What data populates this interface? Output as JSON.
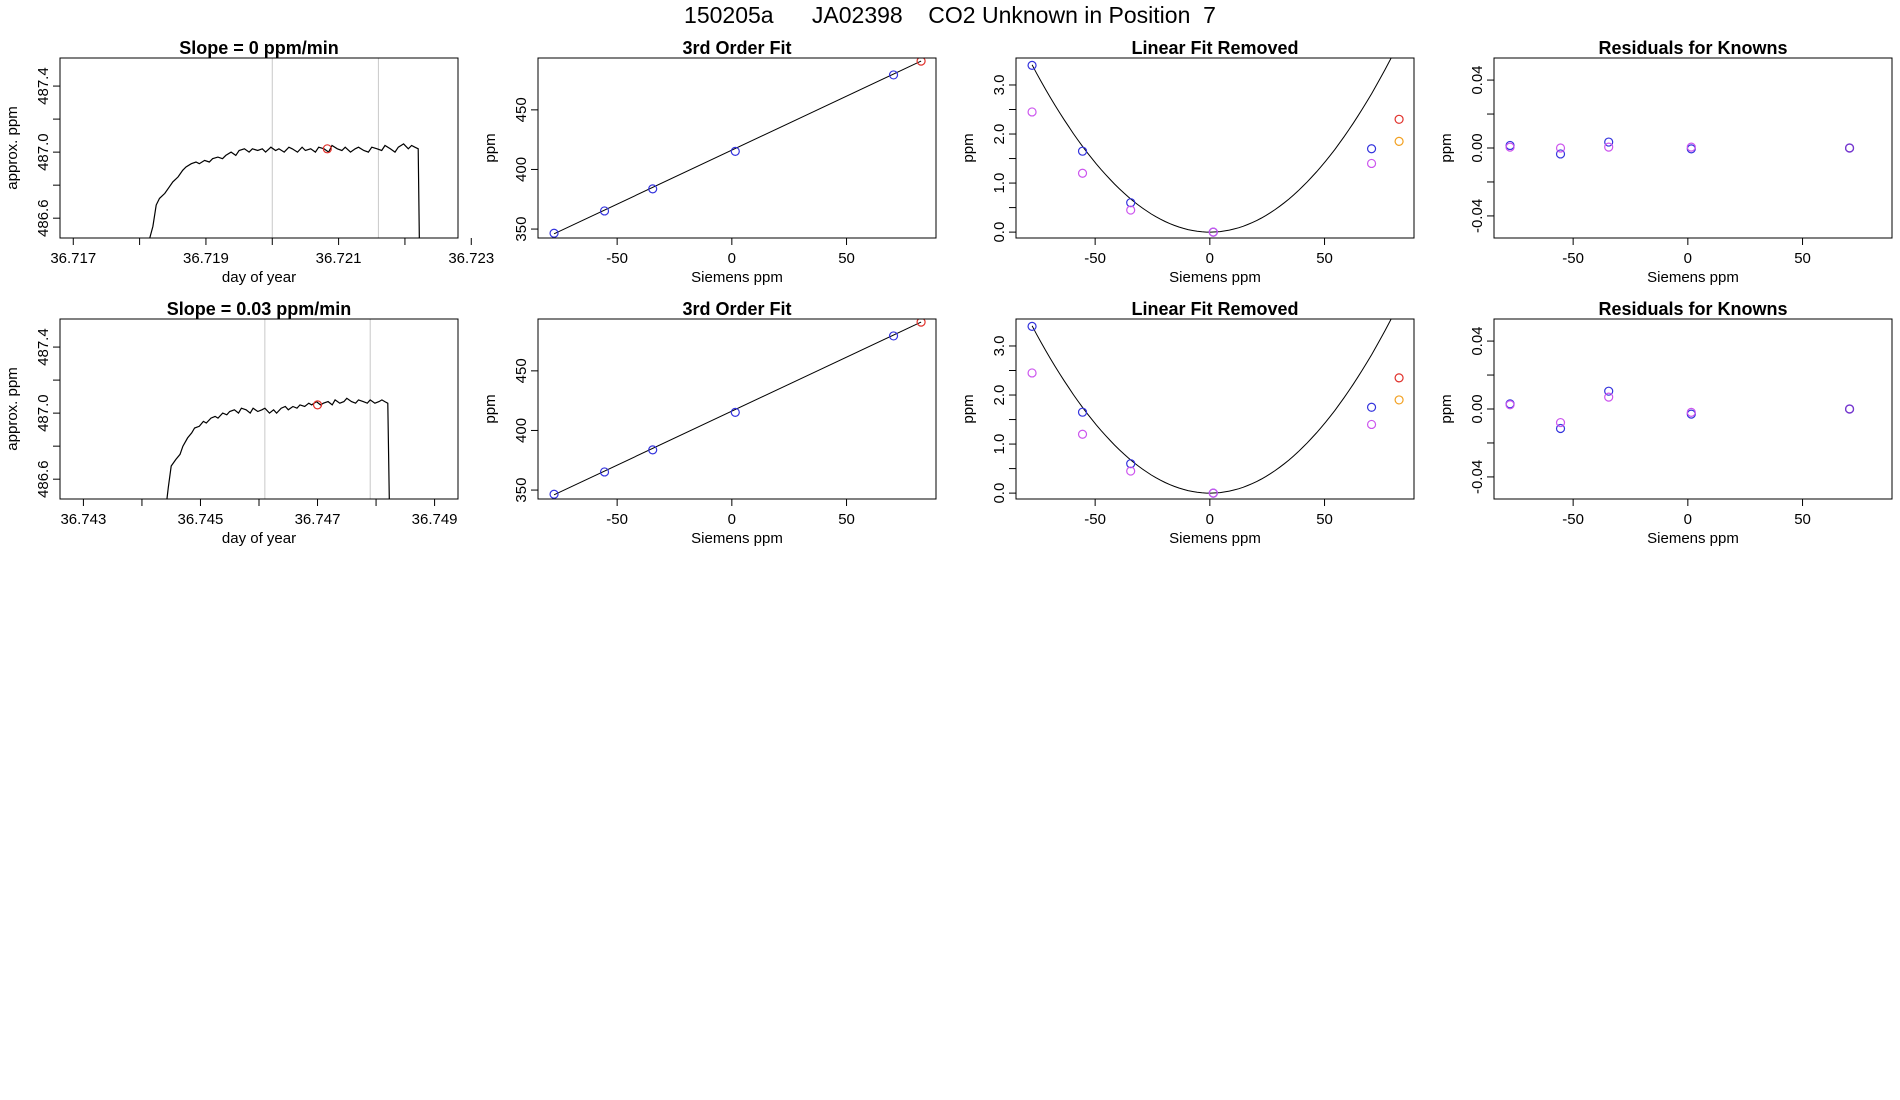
{
  "page": {
    "title": "150205a      JA02398    CO2 Unknown in Position  7"
  },
  "colors": {
    "blue": "#3333dd",
    "red": "#e0302a",
    "magenta": "#cc55ee",
    "orange": "#f2a020",
    "purple": "#7a33cc",
    "line": "#000000",
    "vline": "#c8c8c8"
  },
  "chart_data": [
    {
      "type": "line",
      "title": "Slope =  0  ppm/min",
      "xlabel": "day of year",
      "ylabel": "approx. ppm",
      "xlim": [
        36.7168,
        36.7228
      ],
      "ylim": [
        486.48,
        487.57
      ],
      "xticks": [
        36.717,
        36.718,
        36.719,
        36.72,
        36.721,
        36.722,
        36.723
      ],
      "xtick_labels": [
        "36.717",
        "",
        "36.719",
        "",
        "36.721",
        "",
        "36.723"
      ],
      "yticks": [
        486.6,
        486.8,
        487.0,
        487.2,
        487.4
      ],
      "ytick_labels": [
        "486.6",
        "",
        "487.0",
        "",
        "487.4"
      ],
      "vlines": [
        36.72,
        36.7216
      ],
      "trace": [
        [
          36.7181,
          486.4
        ],
        [
          36.7182,
          486.55
        ],
        [
          36.71825,
          486.68
        ],
        [
          36.7183,
          486.72
        ],
        [
          36.71838,
          486.75
        ],
        [
          36.71845,
          486.79
        ],
        [
          36.7185,
          486.82
        ],
        [
          36.71858,
          486.85
        ],
        [
          36.71865,
          486.89
        ],
        [
          36.7187,
          486.91
        ],
        [
          36.71878,
          486.93
        ],
        [
          36.71885,
          486.94
        ],
        [
          36.7189,
          486.93
        ],
        [
          36.71898,
          486.95
        ],
        [
          36.71905,
          486.94
        ],
        [
          36.7191,
          486.96
        ],
        [
          36.71918,
          486.97
        ],
        [
          36.71925,
          486.96
        ],
        [
          36.7193,
          486.98
        ],
        [
          36.71938,
          487.0
        ],
        [
          36.71945,
          486.98
        ],
        [
          36.7195,
          487.01
        ],
        [
          36.71958,
          487.02
        ],
        [
          36.71965,
          487.0
        ],
        [
          36.7197,
          487.02
        ],
        [
          36.71978,
          487.01
        ],
        [
          36.71985,
          487.02
        ],
        [
          36.7199,
          487.0
        ],
        [
          36.71998,
          487.03
        ],
        [
          36.72005,
          487.01
        ],
        [
          36.7201,
          487.02
        ],
        [
          36.72018,
          487.0
        ],
        [
          36.72025,
          487.03
        ],
        [
          36.7203,
          487.02
        ],
        [
          36.72038,
          487.0
        ],
        [
          36.72045,
          487.03
        ],
        [
          36.7205,
          487.01
        ],
        [
          36.72058,
          487.02
        ],
        [
          36.72065,
          487.0
        ],
        [
          36.7207,
          487.03
        ],
        [
          36.72078,
          487.02
        ],
        [
          36.72085,
          487.0
        ],
        [
          36.7209,
          487.04
        ],
        [
          36.72098,
          487.02
        ],
        [
          36.72105,
          487.01
        ],
        [
          36.7211,
          487.03
        ],
        [
          36.72118,
          487.0
        ],
        [
          36.72125,
          487.02
        ],
        [
          36.7213,
          487.03
        ],
        [
          36.72138,
          487.01
        ],
        [
          36.72145,
          487.0
        ],
        [
          36.7215,
          487.03
        ],
        [
          36.72158,
          487.02
        ],
        [
          36.72165,
          487.01
        ],
        [
          36.7217,
          487.04
        ],
        [
          36.72178,
          487.02
        ],
        [
          36.72185,
          487.0
        ],
        [
          36.7219,
          487.03
        ],
        [
          36.72198,
          487.05
        ],
        [
          36.72205,
          487.02
        ],
        [
          36.7221,
          487.04
        ],
        [
          36.72215,
          487.03
        ],
        [
          36.7222,
          487.02
        ],
        [
          36.72222,
          486.4
        ]
      ],
      "points": [
        {
          "x": 36.72083,
          "y": 487.02,
          "color": "red"
        }
      ]
    },
    {
      "type": "scatter",
      "title": "3rd Order Fit",
      "xlabel": "Siemens ppm",
      "ylabel": "ppm",
      "xlim": [
        -84.5,
        89
      ],
      "ylim": [
        342.5,
        493.5
      ],
      "xticks": [
        -50,
        0,
        50
      ],
      "xtick_labels": [
        "-50",
        "0",
        "50"
      ],
      "yticks": [
        350,
        400,
        450
      ],
      "ytick_labels": [
        "350",
        "400",
        "450"
      ],
      "fit_line": {
        "x0": -77.5,
        "y0": 346.0,
        "slope": 0.9057
      },
      "points": [
        {
          "x": -77.5,
          "y": 346.5,
          "color": "blue"
        },
        {
          "x": -55.5,
          "y": 365.2,
          "color": "blue"
        },
        {
          "x": -34.5,
          "y": 383.7,
          "color": "blue"
        },
        {
          "x": 1.5,
          "y": 415.2,
          "color": "blue"
        },
        {
          "x": 70.5,
          "y": 479.3,
          "color": "blue"
        },
        {
          "x": 82.5,
          "y": 490.9,
          "color": "red"
        }
      ]
    },
    {
      "type": "scatter",
      "title": "Linear Fit Removed",
      "xlabel": "Siemens ppm",
      "ylabel": "ppm",
      "xlim": [
        -84.5,
        89
      ],
      "ylim": [
        -0.12,
        3.55
      ],
      "xticks": [
        -50,
        0,
        50
      ],
      "xtick_labels": [
        "-50",
        "0",
        "50"
      ],
      "yticks": [
        0,
        0.5,
        1,
        1.5,
        2,
        2.5,
        3
      ],
      "ytick_labels": [
        "0.0",
        "",
        "1.0",
        "",
        "2.0",
        "",
        "3.0"
      ],
      "fit_curve": {
        "x0": 0,
        "a": 0.000568,
        "xmin": -77.5,
        "xmax": 82.5
      },
      "points": [
        {
          "x": -77.5,
          "y": 3.4,
          "color": "blue"
        },
        {
          "x": -77.5,
          "y": 2.45,
          "color": "magenta"
        },
        {
          "x": -55.5,
          "y": 1.65,
          "color": "blue"
        },
        {
          "x": -55.5,
          "y": 1.2,
          "color": "magenta"
        },
        {
          "x": -34.5,
          "y": 0.6,
          "color": "blue"
        },
        {
          "x": -34.5,
          "y": 0.45,
          "color": "magenta"
        },
        {
          "x": 1.5,
          "y": 0.0,
          "color": "blue"
        },
        {
          "x": 1.5,
          "y": 0.0,
          "color": "magenta"
        },
        {
          "x": 70.5,
          "y": 1.7,
          "color": "blue"
        },
        {
          "x": 70.5,
          "y": 1.4,
          "color": "magenta"
        },
        {
          "x": 82.5,
          "y": 2.3,
          "color": "red"
        },
        {
          "x": 82.5,
          "y": 1.85,
          "color": "orange"
        }
      ]
    },
    {
      "type": "scatter",
      "title": "Residuals for Knowns",
      "xlabel": "Siemens ppm",
      "ylabel": "ppm",
      "xlim": [
        -84.5,
        89
      ],
      "ylim": [
        -0.053,
        0.053
      ],
      "xticks": [
        -50,
        0,
        50
      ],
      "xtick_labels": [
        "-50",
        "0",
        "50"
      ],
      "yticks": [
        -0.04,
        -0.02,
        0,
        0.02,
        0.04
      ],
      "ytick_labels": [
        "-0.04",
        "",
        "0.00",
        "",
        "0.04"
      ],
      "points": [
        {
          "x": -77.5,
          "y": 0.0015,
          "color": "blue"
        },
        {
          "x": -77.5,
          "y": 0.0005,
          "color": "magenta"
        },
        {
          "x": -55.5,
          "y": -0.0035,
          "color": "blue"
        },
        {
          "x": -55.5,
          "y": 0.0,
          "color": "magenta"
        },
        {
          "x": -34.5,
          "y": 0.0035,
          "color": "blue"
        },
        {
          "x": -34.5,
          "y": 0.0005,
          "color": "magenta"
        },
        {
          "x": 1.5,
          "y": -0.0005,
          "color": "blue"
        },
        {
          "x": 1.5,
          "y": 0.0005,
          "color": "magenta"
        },
        {
          "x": 70.5,
          "y": 0.0,
          "color": "blue"
        },
        {
          "x": 70.5,
          "y": 0.0,
          "color": "purple"
        }
      ]
    },
    {
      "type": "line",
      "title": "Slope =  0.03  ppm/min",
      "xlabel": "day of year",
      "ylabel": "approx. ppm",
      "xlim": [
        36.7426,
        36.7494
      ],
      "ylim": [
        486.48,
        487.57
      ],
      "xticks": [
        36.743,
        36.744,
        36.745,
        36.746,
        36.747,
        36.748,
        36.749
      ],
      "xtick_labels": [
        "36.743",
        "",
        "36.745",
        "",
        "36.747",
        "",
        "36.749"
      ],
      "yticks": [
        486.6,
        486.8,
        487.0,
        487.2,
        487.4
      ],
      "ytick_labels": [
        "486.6",
        "",
        "487.0",
        "",
        "487.4"
      ],
      "vlines": [
        36.7461,
        36.7479
      ],
      "trace": [
        [
          36.7444,
          486.4
        ],
        [
          36.74445,
          486.55
        ],
        [
          36.7445,
          486.68
        ],
        [
          36.74458,
          486.72
        ],
        [
          36.74465,
          486.75
        ],
        [
          36.7447,
          486.8
        ],
        [
          36.74478,
          486.85
        ],
        [
          36.74485,
          486.88
        ],
        [
          36.7449,
          486.91
        ],
        [
          36.74498,
          486.92
        ],
        [
          36.74505,
          486.95
        ],
        [
          36.7451,
          486.94
        ],
        [
          36.74518,
          486.97
        ],
        [
          36.74525,
          486.98
        ],
        [
          36.7453,
          486.97
        ],
        [
          36.74538,
          487.0
        ],
        [
          36.74545,
          486.99
        ],
        [
          36.7455,
          487.01
        ],
        [
          36.74558,
          487.02
        ],
        [
          36.74565,
          487.0
        ],
        [
          36.7457,
          487.03
        ],
        [
          36.74578,
          487.02
        ],
        [
          36.74585,
          487.0
        ],
        [
          36.7459,
          487.03
        ],
        [
          36.74598,
          487.01
        ],
        [
          36.74605,
          487.02
        ],
        [
          36.7461,
          487.03
        ],
        [
          36.74618,
          487.0
        ],
        [
          36.74625,
          487.02
        ],
        [
          36.7463,
          487.0
        ],
        [
          36.74638,
          487.03
        ],
        [
          36.74645,
          487.04
        ],
        [
          36.7465,
          487.02
        ],
        [
          36.74658,
          487.04
        ],
        [
          36.74665,
          487.03
        ],
        [
          36.7467,
          487.05
        ],
        [
          36.74678,
          487.04
        ],
        [
          36.74685,
          487.06
        ],
        [
          36.7469,
          487.05
        ],
        [
          36.74698,
          487.07
        ],
        [
          36.74705,
          487.05
        ],
        [
          36.7471,
          487.06
        ],
        [
          36.74718,
          487.07
        ],
        [
          36.74725,
          487.05
        ],
        [
          36.7473,
          487.08
        ],
        [
          36.74738,
          487.06
        ],
        [
          36.74745,
          487.07
        ],
        [
          36.7475,
          487.09
        ],
        [
          36.74758,
          487.07
        ],
        [
          36.74765,
          487.06
        ],
        [
          36.7477,
          487.08
        ],
        [
          36.74778,
          487.07
        ],
        [
          36.74785,
          487.06
        ],
        [
          36.7479,
          487.08
        ],
        [
          36.74798,
          487.06
        ],
        [
          36.74805,
          487.07
        ],
        [
          36.7481,
          487.08
        ],
        [
          36.74815,
          487.07
        ],
        [
          36.7482,
          487.06
        ],
        [
          36.74823,
          486.4
        ]
      ],
      "points": [
        {
          "x": 36.747,
          "y": 487.05,
          "color": "red"
        }
      ]
    },
    {
      "type": "scatter",
      "title": "3rd Order Fit",
      "xlabel": "Siemens ppm",
      "ylabel": "ppm",
      "xlim": [
        -84.5,
        89
      ],
      "ylim": [
        342.5,
        493.5
      ],
      "xticks": [
        -50,
        0,
        50
      ],
      "xtick_labels": [
        "-50",
        "0",
        "50"
      ],
      "yticks": [
        350,
        400,
        450
      ],
      "ytick_labels": [
        "350",
        "400",
        "450"
      ],
      "fit_line": {
        "x0": -77.5,
        "y0": 346.0,
        "slope": 0.9057
      },
      "points": [
        {
          "x": -77.5,
          "y": 346.5,
          "color": "blue"
        },
        {
          "x": -55.5,
          "y": 365.2,
          "color": "blue"
        },
        {
          "x": -34.5,
          "y": 383.7,
          "color": "blue"
        },
        {
          "x": 1.5,
          "y": 415.2,
          "color": "blue"
        },
        {
          "x": 70.5,
          "y": 479.3,
          "color": "blue"
        },
        {
          "x": 82.5,
          "y": 490.9,
          "color": "red"
        }
      ]
    },
    {
      "type": "scatter",
      "title": "Linear Fit Removed",
      "xlabel": "Siemens ppm",
      "ylabel": "ppm",
      "xlim": [
        -84.5,
        89
      ],
      "ylim": [
        -0.12,
        3.55
      ],
      "xticks": [
        -50,
        0,
        50
      ],
      "xtick_labels": [
        "-50",
        "0",
        "50"
      ],
      "yticks": [
        0,
        0.5,
        1,
        1.5,
        2,
        2.5,
        3
      ],
      "ytick_labels": [
        "0.0",
        "",
        "1.0",
        "",
        "2.0",
        "",
        "3.0"
      ],
      "fit_curve": {
        "x0": 0,
        "a": 0.000568,
        "xmin": -77.5,
        "xmax": 82.5
      },
      "points": [
        {
          "x": -77.5,
          "y": 3.4,
          "color": "blue"
        },
        {
          "x": -77.5,
          "y": 2.45,
          "color": "magenta"
        },
        {
          "x": -55.5,
          "y": 1.65,
          "color": "blue"
        },
        {
          "x": -55.5,
          "y": 1.2,
          "color": "magenta"
        },
        {
          "x": -34.5,
          "y": 0.6,
          "color": "blue"
        },
        {
          "x": -34.5,
          "y": 0.45,
          "color": "magenta"
        },
        {
          "x": 1.5,
          "y": 0.0,
          "color": "blue"
        },
        {
          "x": 1.5,
          "y": 0.0,
          "color": "magenta"
        },
        {
          "x": 70.5,
          "y": 1.75,
          "color": "blue"
        },
        {
          "x": 70.5,
          "y": 1.4,
          "color": "magenta"
        },
        {
          "x": 82.5,
          "y": 2.35,
          "color": "red"
        },
        {
          "x": 82.5,
          "y": 1.9,
          "color": "orange"
        }
      ]
    },
    {
      "type": "scatter",
      "title": "Residuals for Knowns",
      "xlabel": "Siemens ppm",
      "ylabel": "ppm",
      "xlim": [
        -84.5,
        89
      ],
      "ylim": [
        -0.053,
        0.053
      ],
      "xticks": [
        -50,
        0,
        50
      ],
      "xtick_labels": [
        "-50",
        "0",
        "50"
      ],
      "yticks": [
        -0.04,
        -0.02,
        0,
        0.02,
        0.04
      ],
      "ytick_labels": [
        "-0.04",
        "",
        "0.00",
        "",
        "0.04"
      ],
      "points": [
        {
          "x": -77.5,
          "y": 0.003,
          "color": "blue"
        },
        {
          "x": -77.5,
          "y": 0.0025,
          "color": "magenta"
        },
        {
          "x": -55.5,
          "y": -0.0115,
          "color": "blue"
        },
        {
          "x": -55.5,
          "y": -0.008,
          "color": "magenta"
        },
        {
          "x": -34.5,
          "y": 0.0105,
          "color": "blue"
        },
        {
          "x": -34.5,
          "y": 0.007,
          "color": "magenta"
        },
        {
          "x": 1.5,
          "y": -0.003,
          "color": "blue"
        },
        {
          "x": 1.5,
          "y": -0.002,
          "color": "magenta"
        },
        {
          "x": 70.5,
          "y": 0.0,
          "color": "blue"
        },
        {
          "x": 70.5,
          "y": 0.0,
          "color": "purple"
        }
      ]
    }
  ]
}
